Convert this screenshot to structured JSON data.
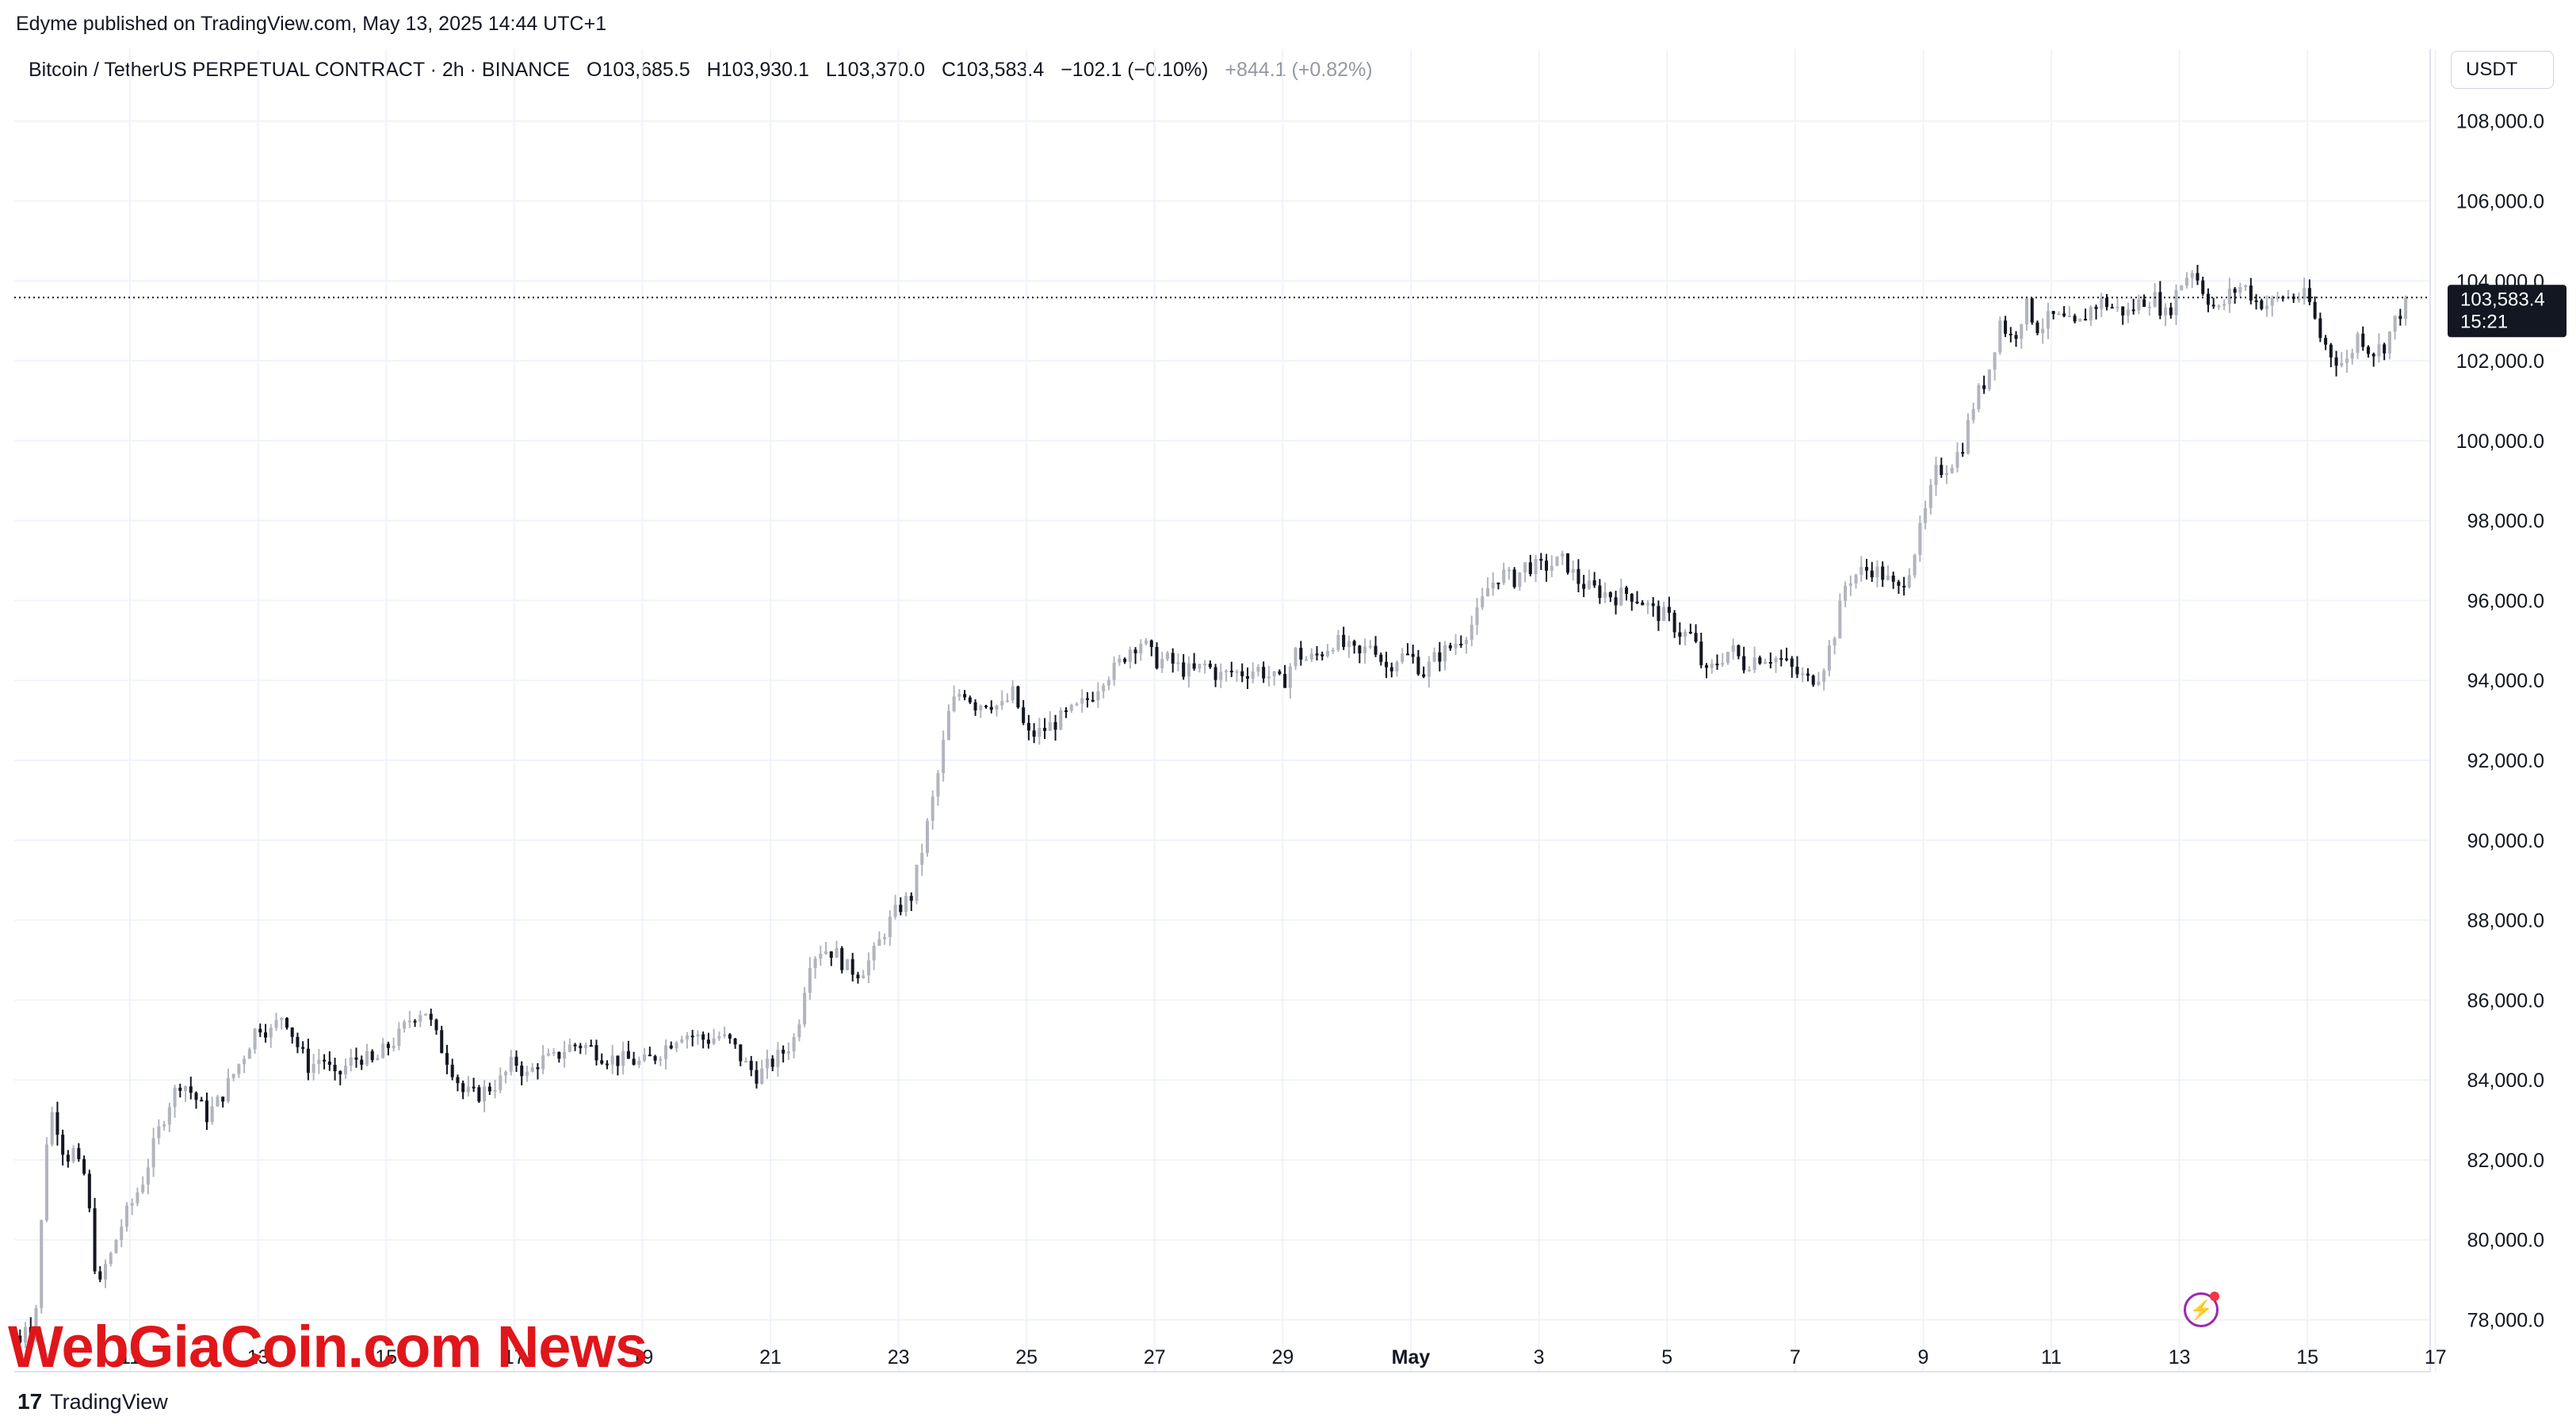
{
  "publisher": "Edyme published on TradingView.com, May 13, 2025 14:44 UTC+1",
  "legend": {
    "symbol": "Bitcoin / TetherUS PERPETUAL CONTRACT · 2h · BINANCE",
    "open": "O103,685.5",
    "high": "H103,930.1",
    "low": "L103,370.0",
    "close": "C103,583.4",
    "change": "−102.1 (−0.10%)",
    "change2": "+844.1 (+0.82%)"
  },
  "currency": "USDT",
  "price_tag": {
    "price": "103,583.4",
    "countdown": "15:21"
  },
  "footer": {
    "logo": "17",
    "brand": "TradingView"
  },
  "watermark": "WebGiaCoin.com News",
  "colors": {
    "up": "#b2b5be",
    "down": "#131722",
    "grid": "#f0f3fa",
    "axis_text": "#131722",
    "tag_bg": "#131722"
  },
  "chart_data": {
    "type": "candlestick",
    "ylim": [
      76700,
      109800
    ],
    "y_ticks": [
      "78,000.0",
      "80,000.0",
      "82,000.0",
      "84,000.0",
      "86,000.0",
      "88,000.0",
      "90,000.0",
      "92,000.0",
      "94,000.0",
      "96,000.0",
      "98,000.0",
      "100,000.0",
      "102,000.0",
      "104,000.0",
      "106,000.0",
      "108,000.0"
    ],
    "y_tick_values": [
      78000,
      80000,
      82000,
      84000,
      86000,
      88000,
      90000,
      92000,
      94000,
      96000,
      98000,
      100000,
      102000,
      104000,
      106000,
      108000
    ],
    "x_ticks": [
      "11",
      "13",
      "15",
      "17",
      "19",
      "21",
      "23",
      "25",
      "27",
      "29",
      "May",
      "3",
      "5",
      "7",
      "9",
      "11",
      "13",
      "15",
      "17"
    ],
    "x_tick_days": [
      0,
      2,
      4,
      6,
      8,
      10,
      12,
      14,
      16,
      18,
      20,
      22,
      24,
      26,
      28,
      30,
      32,
      34,
      36
    ],
    "x_start_day": -1.8,
    "x_end_day": 36.0,
    "last_price": 103583.4,
    "close_path": [
      [
        -1.8,
        77600
      ],
      [
        -1.7,
        77400
      ],
      [
        -1.6,
        78200
      ],
      [
        -1.5,
        77500
      ],
      [
        -1.4,
        80000
      ],
      [
        -1.3,
        82500
      ],
      [
        -1.2,
        83300
      ],
      [
        -1.1,
        82600
      ],
      [
        -1.0,
        82000
      ],
      [
        -0.9,
        82300
      ],
      [
        -0.8,
        81800
      ],
      [
        -0.7,
        81600
      ],
      [
        -0.6,
        80200
      ],
      [
        -0.5,
        78600
      ],
      [
        -0.4,
        79300
      ],
      [
        -0.3,
        79600
      ],
      [
        -0.2,
        80100
      ],
      [
        -0.1,
        80500
      ],
      [
        0.0,
        80800
      ],
      [
        0.2,
        81500
      ],
      [
        0.4,
        82500
      ],
      [
        0.6,
        83400
      ],
      [
        0.8,
        84000
      ],
      [
        1.0,
        83600
      ],
      [
        1.2,
        83100
      ],
      [
        1.4,
        83500
      ],
      [
        1.6,
        84100
      ],
      [
        1.8,
        84700
      ],
      [
        2.0,
        85400
      ],
      [
        2.2,
        85200
      ],
      [
        2.4,
        85700
      ],
      [
        2.6,
        84900
      ],
      [
        2.8,
        84300
      ],
      [
        3.0,
        84600
      ],
      [
        3.2,
        84000
      ],
      [
        3.4,
        84400
      ],
      [
        3.6,
        84600
      ],
      [
        3.8,
        84400
      ],
      [
        4.0,
        84800
      ],
      [
        4.2,
        85100
      ],
      [
        4.4,
        85600
      ],
      [
        4.6,
        85800
      ],
      [
        4.8,
        85000
      ],
      [
        5.0,
        84400
      ],
      [
        5.2,
        83700
      ],
      [
        5.4,
        83600
      ],
      [
        5.6,
        83800
      ],
      [
        5.8,
        84000
      ],
      [
        6.0,
        84500
      ],
      [
        6.2,
        84100
      ],
      [
        6.4,
        84500
      ],
      [
        6.6,
        84500
      ],
      [
        6.8,
        84800
      ],
      [
        7.0,
        84900
      ],
      [
        7.2,
        84800
      ],
      [
        7.4,
        84600
      ],
      [
        7.6,
        84500
      ],
      [
        7.8,
        84500
      ],
      [
        8.0,
        84400
      ],
      [
        8.2,
        84600
      ],
      [
        8.4,
        84900
      ],
      [
        8.6,
        85200
      ],
      [
        8.8,
        85100
      ],
      [
        9.0,
        85000
      ],
      [
        9.2,
        85100
      ],
      [
        9.4,
        84900
      ],
      [
        9.6,
        84400
      ],
      [
        9.8,
        84100
      ],
      [
        10.0,
        84400
      ],
      [
        10.2,
        84700
      ],
      [
        10.4,
        85100
      ],
      [
        10.6,
        87000
      ],
      [
        10.8,
        87300
      ],
      [
        11.0,
        87200
      ],
      [
        11.2,
        86800
      ],
      [
        11.4,
        86700
      ],
      [
        11.6,
        87100
      ],
      [
        11.8,
        87800
      ],
      [
        12.0,
        88300
      ],
      [
        12.2,
        88600
      ],
      [
        12.4,
        90000
      ],
      [
        12.6,
        91500
      ],
      [
        12.8,
        93300
      ],
      [
        13.0,
        93800
      ],
      [
        13.2,
        93400
      ],
      [
        13.4,
        93500
      ],
      [
        13.6,
        93300
      ],
      [
        13.8,
        93700
      ],
      [
        14.0,
        92600
      ],
      [
        14.2,
        92700
      ],
      [
        14.4,
        92900
      ],
      [
        14.6,
        93100
      ],
      [
        14.8,
        93300
      ],
      [
        15.0,
        93600
      ],
      [
        15.2,
        94100
      ],
      [
        15.4,
        94300
      ],
      [
        15.6,
        94800
      ],
      [
        15.8,
        95000
      ],
      [
        16.0,
        94500
      ],
      [
        16.2,
        94500
      ],
      [
        16.4,
        94300
      ],
      [
        16.6,
        94200
      ],
      [
        16.8,
        94400
      ],
      [
        17.0,
        94100
      ],
      [
        17.2,
        94200
      ],
      [
        17.4,
        94200
      ],
      [
        17.6,
        94300
      ],
      [
        17.8,
        94100
      ],
      [
        18.0,
        93900
      ],
      [
        18.2,
        94700
      ],
      [
        18.4,
        94500
      ],
      [
        18.6,
        94700
      ],
      [
        18.8,
        95000
      ],
      [
        19.0,
        94800
      ],
      [
        19.2,
        94600
      ],
      [
        19.4,
        95000
      ],
      [
        19.6,
        94300
      ],
      [
        19.8,
        94600
      ],
      [
        20.0,
        94600
      ],
      [
        20.2,
        94200
      ],
      [
        20.4,
        94600
      ],
      [
        20.6,
        94800
      ],
      [
        20.8,
        95100
      ],
      [
        21.0,
        95500
      ],
      [
        21.2,
        96300
      ],
      [
        21.4,
        96700
      ],
      [
        21.6,
        96500
      ],
      [
        21.8,
        96900
      ],
      [
        22.0,
        96800
      ],
      [
        22.2,
        96900
      ],
      [
        22.4,
        97000
      ],
      [
        22.6,
        96500
      ],
      [
        22.8,
        96300
      ],
      [
        23.0,
        96200
      ],
      [
        23.2,
        96100
      ],
      [
        23.4,
        96200
      ],
      [
        23.6,
        96000
      ],
      [
        23.8,
        95700
      ],
      [
        24.0,
        95600
      ],
      [
        24.2,
        95200
      ],
      [
        24.4,
        95100
      ],
      [
        24.6,
        94100
      ],
      [
        24.8,
        94500
      ],
      [
        25.0,
        94800
      ],
      [
        25.2,
        94400
      ],
      [
        25.4,
        94600
      ],
      [
        25.6,
        94600
      ],
      [
        25.8,
        94500
      ],
      [
        26.0,
        94200
      ],
      [
        26.2,
        94000
      ],
      [
        26.4,
        94200
      ],
      [
        26.6,
        95100
      ],
      [
        26.8,
        96500
      ],
      [
        27.0,
        96700
      ],
      [
        27.2,
        96800
      ],
      [
        27.4,
        96600
      ],
      [
        27.6,
        96200
      ],
      [
        27.8,
        96900
      ],
      [
        28.0,
        98000
      ],
      [
        28.2,
        99200
      ],
      [
        28.4,
        99400
      ],
      [
        28.6,
        99800
      ],
      [
        28.8,
        101000
      ],
      [
        29.0,
        101600
      ],
      [
        29.2,
        103000
      ],
      [
        29.4,
        102500
      ],
      [
        29.6,
        103400
      ],
      [
        29.8,
        102800
      ],
      [
        30.0,
        103100
      ],
      [
        30.2,
        103000
      ],
      [
        30.4,
        102800
      ],
      [
        30.6,
        103300
      ],
      [
        30.8,
        103500
      ],
      [
        31.0,
        103300
      ],
      [
        31.2,
        103200
      ],
      [
        31.4,
        103500
      ],
      [
        31.6,
        103600
      ],
      [
        31.8,
        103100
      ],
      [
        32.0,
        103900
      ],
      [
        32.2,
        104300
      ],
      [
        32.4,
        103700
      ],
      [
        32.6,
        103200
      ],
      [
        32.8,
        103700
      ],
      [
        33.0,
        103900
      ],
      [
        33.2,
        103500
      ],
      [
        33.4,
        103400
      ],
      [
        33.6,
        103600
      ],
      [
        33.8,
        103600
      ],
      [
        34.0,
        103600
      ],
      [
        34.2,
        102600
      ],
      [
        34.4,
        102100
      ],
      [
        34.6,
        101900
      ],
      [
        34.8,
        102700
      ],
      [
        35.0,
        102200
      ],
      [
        35.2,
        102400
      ],
      [
        35.4,
        103100
      ],
      [
        35.6,
        103583
      ]
    ]
  }
}
